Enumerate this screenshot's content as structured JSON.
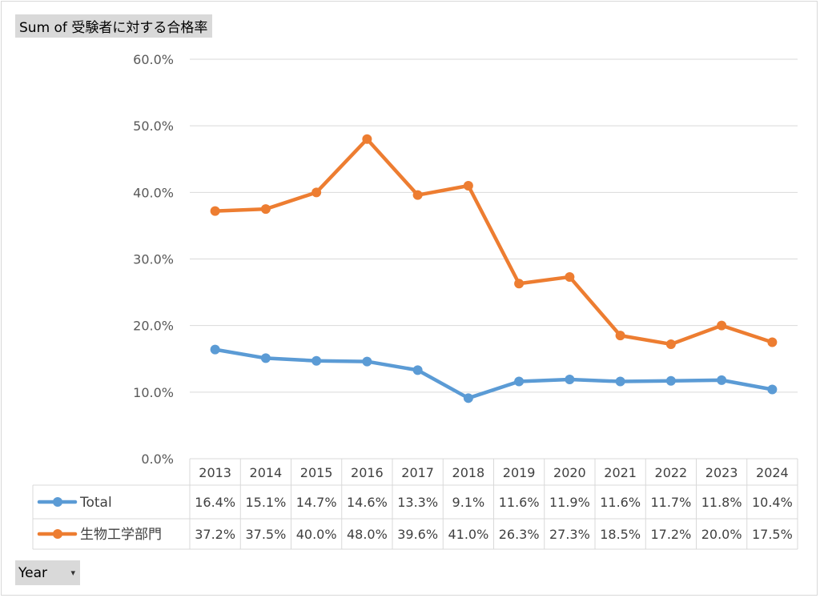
{
  "pivot": {
    "value_field": "Sum of 受験者に対する合格率",
    "row_field": "Year",
    "row_field_dropdown_icon": "chevron-down-icon"
  },
  "chart_data": {
    "type": "line",
    "title": "",
    "xlabel": "",
    "ylabel": "",
    "categories": [
      "2013",
      "2014",
      "2015",
      "2016",
      "2017",
      "2018",
      "2019",
      "2020",
      "2021",
      "2022",
      "2023",
      "2024"
    ],
    "ylim": [
      0,
      60
    ],
    "yticks": [
      "0.0%",
      "10.0%",
      "20.0%",
      "30.0%",
      "40.0%",
      "50.0%",
      "60.0%"
    ],
    "grid": true,
    "legend": "data-table-left",
    "series": [
      {
        "name": "Total",
        "color": "#5B9BD5",
        "values": [
          16.4,
          15.1,
          14.7,
          14.6,
          13.3,
          9.1,
          11.6,
          11.9,
          11.6,
          11.7,
          11.8,
          10.4
        ],
        "labels": [
          "16.4%",
          "15.1%",
          "14.7%",
          "14.6%",
          "13.3%",
          "9.1%",
          "11.6%",
          "11.9%",
          "11.6%",
          "11.7%",
          "11.8%",
          "10.4%"
        ]
      },
      {
        "name": "生物工学部門",
        "color": "#ED7D31",
        "values": [
          37.2,
          37.5,
          40.0,
          48.0,
          39.6,
          41.0,
          26.3,
          27.3,
          18.5,
          17.2,
          20.0,
          17.5
        ],
        "labels": [
          "37.2%",
          "37.5%",
          "40.0%",
          "48.0%",
          "39.6%",
          "41.0%",
          "26.3%",
          "27.3%",
          "18.5%",
          "17.2%",
          "20.0%",
          "17.5%"
        ]
      }
    ]
  }
}
